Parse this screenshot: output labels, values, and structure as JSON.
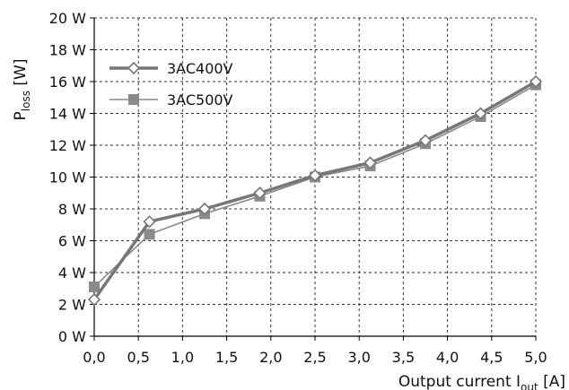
{
  "chart_data": {
    "type": "line",
    "x": [
      0.0,
      0.625,
      1.25,
      1.875,
      2.5,
      3.125,
      3.75,
      4.375,
      5.0
    ],
    "x_ticks": [
      "0,0",
      "0,5",
      "1,0",
      "1,5",
      "2,0",
      "2,5",
      "3,0",
      "3,5",
      "4,0",
      "4,5",
      "5,0"
    ],
    "x_tick_values": [
      0,
      0.5,
      1.0,
      1.5,
      2.0,
      2.5,
      3.0,
      3.5,
      4.0,
      4.5,
      5.0
    ],
    "y_ticks": [
      "0 W",
      "2 W",
      "4 W",
      "6 W",
      "8 W",
      "10 W",
      "12 W",
      "14 W",
      "16 W",
      "18 W",
      "20 W"
    ],
    "y_tick_values": [
      0,
      2,
      4,
      6,
      8,
      10,
      12,
      14,
      16,
      18,
      20
    ],
    "xlim": [
      0,
      5
    ],
    "ylim": [
      0,
      20
    ],
    "grid": true,
    "legend_position": "top-left",
    "ylabel": {
      "main": "P",
      "sub": "loss",
      "rest": " [W]"
    },
    "xlabel": {
      "main": "Output current I",
      "sub": "out",
      "rest": " [A]"
    },
    "series": [
      {
        "name": "3AC400V",
        "values": [
          2.3,
          7.2,
          8.0,
          9.0,
          10.1,
          10.9,
          12.3,
          14.0,
          16.0
        ],
        "color": "#777777",
        "marker": "diamond-open"
      },
      {
        "name": "3AC500V",
        "values": [
          3.1,
          6.4,
          7.7,
          8.8,
          10.0,
          10.7,
          12.1,
          13.8,
          15.8
        ],
        "color": "#8a8a8a",
        "marker": "square-filled"
      }
    ]
  }
}
